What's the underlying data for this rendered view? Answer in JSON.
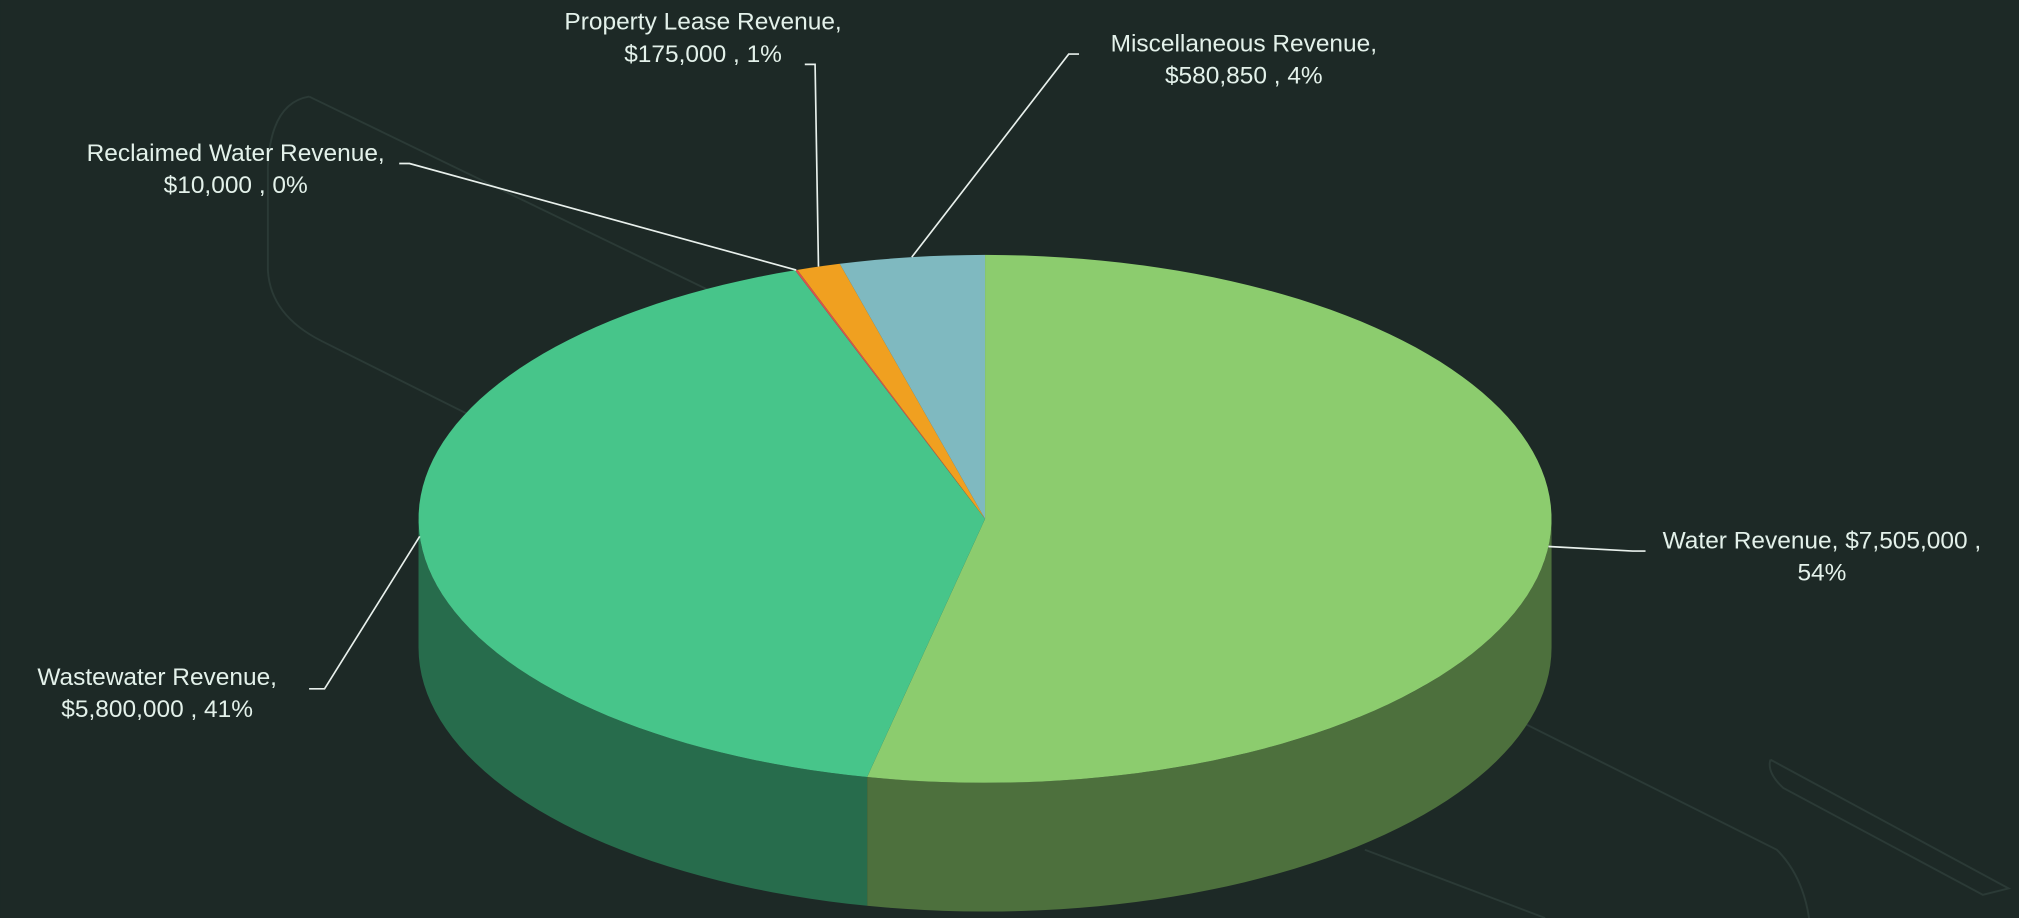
{
  "chart_data": {
    "type": "pie3d",
    "labels": [
      [
        "Water Revenue, $7,505,000 ,",
        "54%"
      ],
      [
        "Wastewater Revenue,",
        "$5,800,000 , 41%"
      ],
      [
        "Reclaimed Water Revenue,",
        "$10,000 , 0%"
      ],
      [
        "Property Lease Revenue,",
        "$175,000 , 1%"
      ],
      [
        "Miscellaneous Revenue,",
        "$580,850 , 4%"
      ]
    ],
    "values": [
      7505000,
      5800000,
      10000,
      175000,
      580850
    ],
    "colors": [
      "#8ccc6e",
      "#47c58a",
      "#d9534f",
      "#f0a020",
      "#7fb9c0"
    ]
  }
}
